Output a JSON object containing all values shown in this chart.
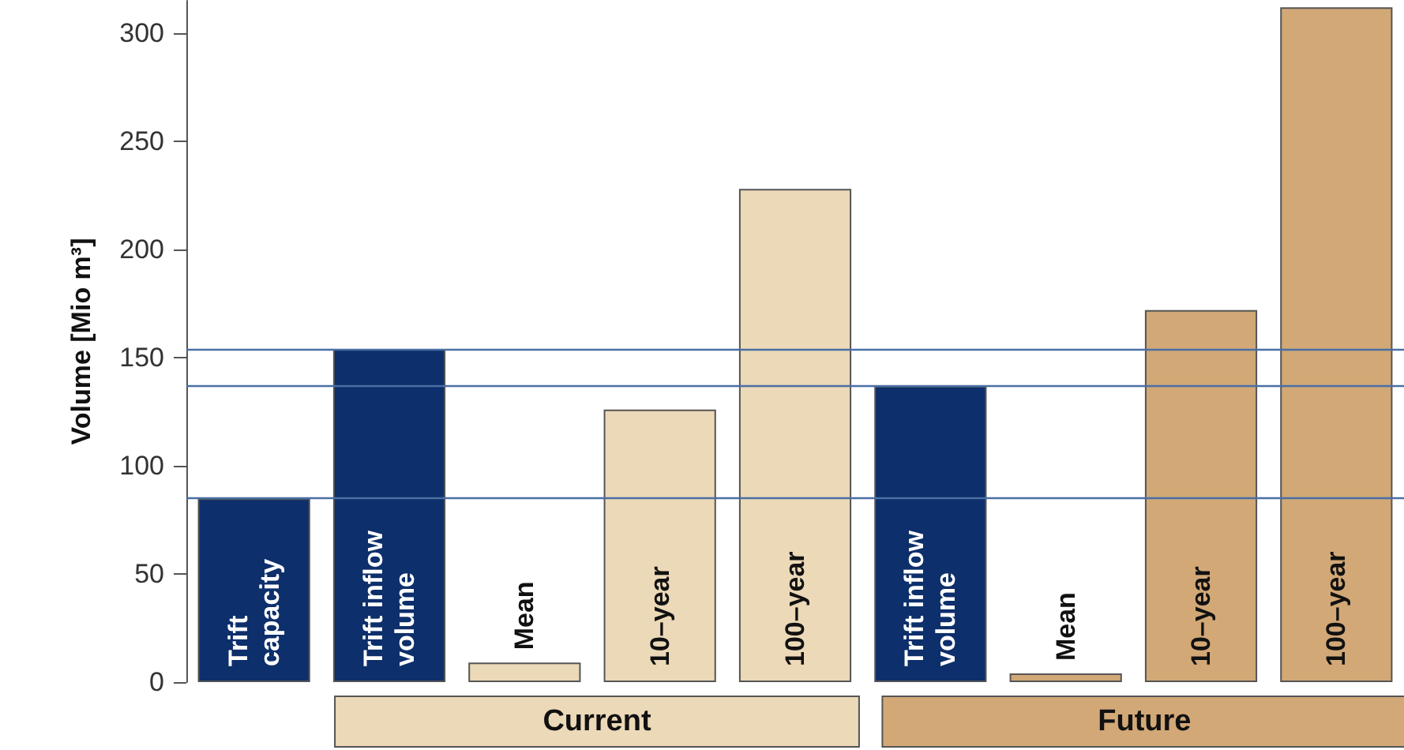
{
  "chart_data": {
    "type": "bar",
    "ylabel": "Volume [Mio m³]",
    "categories": [
      "Trift capacity",
      "Trift inflow volume",
      "Mean",
      "10–year",
      "100–year",
      "Trift inflow volume",
      "Mean",
      "10–year",
      "100–year"
    ],
    "values": [
      85,
      154,
      9,
      126,
      228,
      137,
      4,
      172,
      312
    ],
    "colors": [
      "#0d2f6b",
      "#0d2f6b",
      "#ecd9b8",
      "#ecd9b8",
      "#ecd9b8",
      "#0d2f6b",
      "#d2a877",
      "#d2a877",
      "#d2a877"
    ],
    "ylim": [
      0,
      315
    ],
    "yticks": [
      0,
      50,
      100,
      150,
      200,
      250,
      300
    ],
    "tick_labels": "y",
    "grid": false,
    "ref_lines": [
      {
        "axis": "y",
        "value": 85,
        "color": "#4a6fa5"
      },
      {
        "axis": "y",
        "value": 154,
        "color": "#4a6fa5"
      },
      {
        "axis": "y",
        "value": 137,
        "color": "#4a6fa5"
      }
    ],
    "annotations": [
      "Current",
      "Future"
    ]
  }
}
